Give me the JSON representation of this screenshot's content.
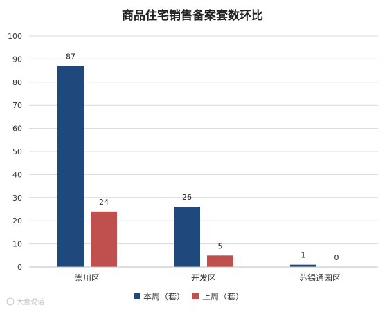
{
  "chart_data": {
    "type": "bar",
    "title": "商品住宅销售备案套数环比",
    "categories": [
      "崇川区",
      "开发区",
      "苏锡通园区"
    ],
    "series": [
      {
        "name": "本周（套）",
        "color": "#1f497d",
        "values": [
          87,
          26,
          1
        ]
      },
      {
        "name": "上周（套）",
        "color": "#c0504d",
        "values": [
          24,
          5,
          0
        ]
      }
    ],
    "ylim": [
      0,
      100
    ],
    "yticks": [
      0,
      10,
      20,
      30,
      40,
      50,
      60,
      70,
      80,
      90,
      100
    ],
    "grid": true,
    "legend_position": "bottom"
  },
  "watermark": "大盘说话"
}
